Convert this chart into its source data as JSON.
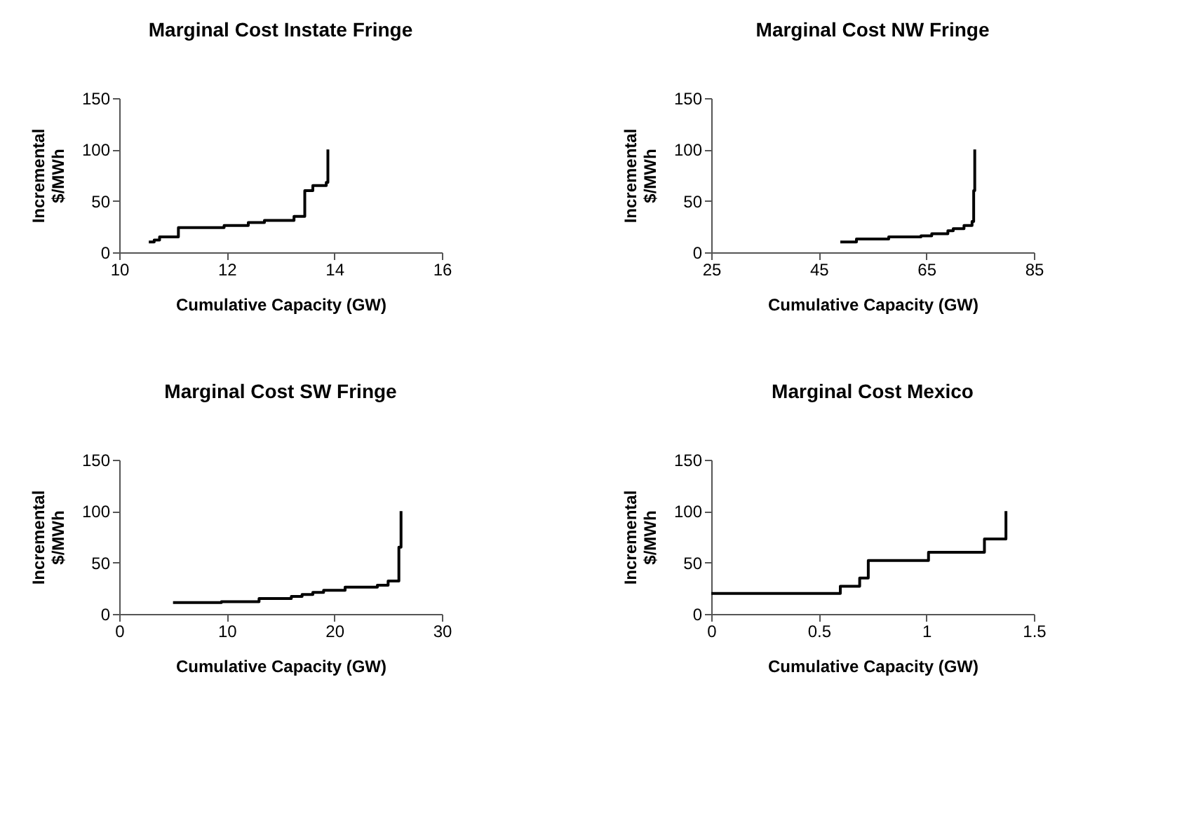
{
  "chart_data": [
    {
      "type": "step",
      "title": "Marginal Cost Instate Fringe",
      "xlabel": "Cumulative Capacity (GW)",
      "ylabel": "Incremental $/MWh",
      "x": [
        10.55,
        10.65,
        10.75,
        11.1,
        11.95,
        12.4,
        12.7,
        13.25,
        13.45,
        13.6,
        13.85,
        13.88
      ],
      "values": [
        10,
        12,
        15,
        24,
        26,
        29,
        31,
        35,
        60,
        65,
        68,
        100
      ],
      "color": "#000000",
      "xlim": [
        10,
        16
      ],
      "xticks": [
        10,
        12,
        14,
        16
      ],
      "ylim": [
        0,
        150
      ],
      "yticks": [
        0,
        50,
        100,
        150
      ],
      "grid": false
    },
    {
      "type": "step",
      "title": "Marginal Cost NW Fringe",
      "xlabel": "Cumulative Capacity (GW)",
      "ylabel": "Incremental $/MWh",
      "x": [
        49,
        52,
        58,
        64,
        66,
        69,
        70,
        72,
        73.5,
        73.8,
        74
      ],
      "values": [
        10,
        13,
        15,
        16,
        18,
        21,
        23,
        26,
        30,
        60,
        100
      ],
      "color": "#000000",
      "xlim": [
        25,
        85
      ],
      "xticks": [
        25,
        45,
        65,
        85
      ],
      "ylim": [
        0,
        150
      ],
      "yticks": [
        0,
        50,
        100,
        150
      ],
      "grid": false
    },
    {
      "type": "step",
      "title": "Marginal Cost SW Fringe",
      "xlabel": "Cumulative Capacity (GW)",
      "ylabel": "Incremental $/MWh",
      "x": [
        5,
        9.5,
        13,
        16,
        17,
        18,
        19,
        21,
        24,
        25,
        26,
        26.2
      ],
      "values": [
        11,
        12,
        15,
        17,
        19,
        21,
        23,
        26,
        28,
        32,
        65,
        100
      ],
      "color": "#000000",
      "xlim": [
        0,
        30
      ],
      "xticks": [
        0,
        10,
        20,
        30
      ],
      "ylim": [
        0,
        150
      ],
      "yticks": [
        0,
        50,
        100,
        150
      ],
      "grid": false
    },
    {
      "type": "step",
      "title": "Marginal Cost Mexico",
      "xlabel": "Cumulative Capacity (GW)",
      "ylabel": "Incremental $/MWh",
      "x": [
        0,
        0.6,
        0.69,
        0.73,
        1.01,
        1.27,
        1.37
      ],
      "values": [
        20,
        27,
        35,
        52,
        60,
        73,
        100
      ],
      "color": "#000000",
      "xlim": [
        0,
        1.5
      ],
      "xticks": [
        0,
        0.5,
        1,
        1.5
      ],
      "ylim": [
        0,
        150
      ],
      "yticks": [
        0,
        50,
        100,
        150
      ],
      "grid": false
    }
  ]
}
